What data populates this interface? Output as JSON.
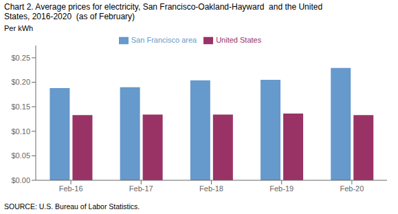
{
  "chart_data": {
    "type": "bar",
    "title": "Chart 2. Average prices for electricity, San Francisco-Oakland-Hayward  and the United\nStates, 2016-2020  (as of February)",
    "ylabel": "Per kWh",
    "annotations": [
      "SOURCE: U.S. Bureau of Labor Statistics."
    ],
    "categories": [
      "Feb-16",
      "Feb-17",
      "Feb-18",
      "Feb-19",
      "Feb-20"
    ],
    "series": [
      {
        "name": "San Francisco area",
        "color": "#6699CC",
        "values": [
          0.188,
          0.19,
          0.204,
          0.205,
          0.229
        ]
      },
      {
        "name": "United States",
        "color": "#993366",
        "values": [
          0.133,
          0.134,
          0.134,
          0.136,
          0.133
        ]
      }
    ],
    "ylim": [
      0,
      0.275
    ],
    "yticks": [
      {
        "value": 0.0,
        "label": "$0.00"
      },
      {
        "value": 0.05,
        "label": "$0.05"
      },
      {
        "value": 0.1,
        "label": "$0.10"
      },
      {
        "value": 0.15,
        "label": "$0.15"
      },
      {
        "value": 0.2,
        "label": "$0.20"
      },
      {
        "value": 0.25,
        "label": "$0.25"
      }
    ],
    "grid": false,
    "legend": "top"
  }
}
